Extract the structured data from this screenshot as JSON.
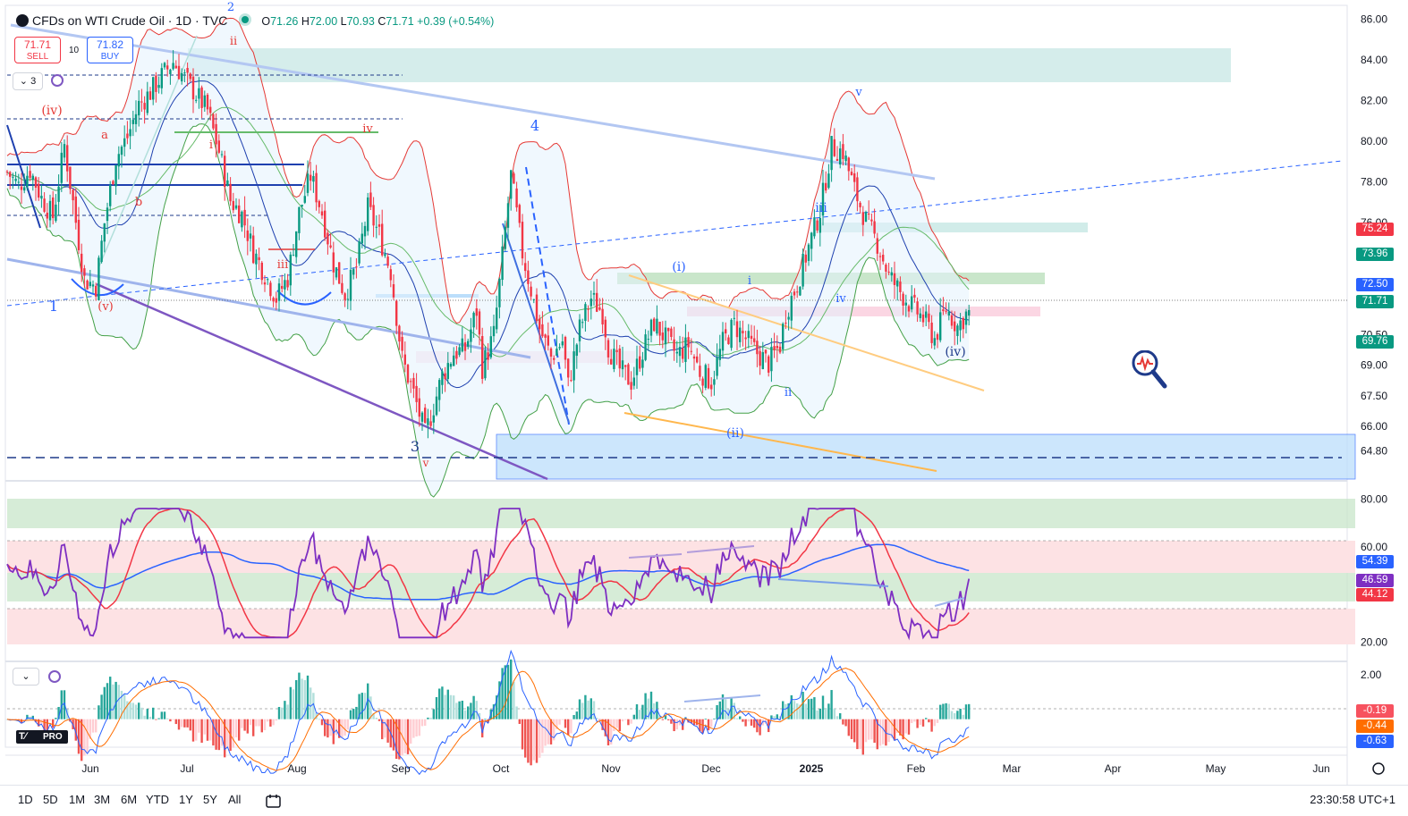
{
  "header": {
    "title": "CFDs on WTI Crude Oil · 1D · TVC",
    "ohlc": {
      "open_label": "O",
      "open": "71.26",
      "high_label": "H",
      "high": "72.00",
      "low_label": "L",
      "low": "70.93",
      "close_label": "C",
      "close": "71.71",
      "change": "+0.39 (+0.54%)"
    }
  },
  "trade": {
    "sell_price": "71.71",
    "sell_label": "SELL",
    "quantity": "10",
    "buy_price": "71.82",
    "buy_label": "BUY"
  },
  "indicators_toggle": {
    "count": "3"
  },
  "price_axis_labels": [
    {
      "text": "75.24",
      "color": "#f23645",
      "value": 75.24
    },
    {
      "text": "73.96",
      "color": "#089981",
      "value": 73.96
    },
    {
      "text": "72.50",
      "color": "#2962ff",
      "value": 72.5
    },
    {
      "text": "71.71",
      "color": "#089981",
      "value": 71.71
    },
    {
      "text": "69.76",
      "color": "#089981",
      "value": 69.76
    }
  ],
  "rsi_axis_labels": [
    {
      "text": "54.39",
      "color": "#2962ff",
      "value": 54.39
    },
    {
      "text": "46.59",
      "color": "#7e2fc2",
      "value": 46.59
    },
    {
      "text": "44.12",
      "color": "#f23645",
      "value": 44.12
    }
  ],
  "macd_axis_labels": [
    {
      "text": "-0.19",
      "color": "#f7525f",
      "value": -0.19
    },
    {
      "text": "-0.44",
      "color": "#ff6d00",
      "value": -0.44
    },
    {
      "text": "-0.63",
      "color": "#2962ff",
      "value": -0.63
    }
  ],
  "timeframes": [
    "1D",
    "5D",
    "1M",
    "3M",
    "6M",
    "YTD",
    "1Y",
    "5Y",
    "All"
  ],
  "clock": "23:30:58 UTC+1",
  "brand": "PRO",
  "chart_data": [
    {
      "type": "candlestick",
      "ylim": [
        63.5,
        86.5
      ],
      "yticks": [
        "86.00",
        "84.00",
        "82.00",
        "80.00",
        "78.00",
        "76.00",
        "73.96",
        "72.50",
        "71.71",
        "70.50",
        "69.00",
        "67.50",
        "66.00",
        "64.80"
      ],
      "ytick_values": [
        86,
        84,
        82,
        80,
        78,
        76,
        74.5,
        73.0,
        71.9,
        70.5,
        69,
        67.5,
        66,
        64.8
      ],
      "x_labels": [
        "Jun",
        "Jul",
        "Aug",
        "Sep",
        "Oct",
        "Nov",
        "Dec",
        "2025",
        "Feb",
        "Mar",
        "Apr",
        "May",
        "Jun"
      ],
      "last_price": 71.71,
      "close_path": [
        [
          0,
          78.5
        ],
        [
          4,
          77.8
        ],
        [
          8,
          78.6
        ],
        [
          12,
          77.2
        ],
        [
          16,
          76.3
        ],
        [
          20,
          79.8
        ],
        [
          23,
          77.0
        ],
        [
          27,
          73.2
        ],
        [
          31,
          72.9
        ],
        [
          34,
          76.0
        ],
        [
          38,
          79.2
        ],
        [
          42,
          80.2
        ],
        [
          46,
          81.8
        ],
        [
          50,
          82.4
        ],
        [
          54,
          83.2
        ],
        [
          58,
          83.9
        ],
        [
          62,
          83.1
        ],
        [
          66,
          82.3
        ],
        [
          70,
          81.5
        ],
        [
          74,
          79.5
        ],
        [
          78,
          77.1
        ],
        [
          82,
          76.4
        ],
        [
          86,
          74.6
        ],
        [
          90,
          73.5
        ],
        [
          94,
          72.3
        ],
        [
          98,
          73.3
        ],
        [
          102,
          76.5
        ],
        [
          106,
          78.3
        ],
        [
          110,
          76.5
        ],
        [
          114,
          74.0
        ],
        [
          118,
          72.5
        ],
        [
          122,
          73.8
        ],
        [
          126,
          76.7
        ],
        [
          130,
          75.4
        ],
        [
          134,
          73.6
        ],
        [
          138,
          69.3
        ],
        [
          142,
          67.6
        ],
        [
          146,
          65.6
        ],
        [
          148,
          66.5
        ],
        [
          152,
          68.5
        ],
        [
          156,
          69.6
        ],
        [
          160,
          69.8
        ],
        [
          164,
          71.7
        ],
        [
          166,
          68.9
        ],
        [
          170,
          70.5
        ],
        [
          172,
          73.0
        ],
        [
          176,
          78.3
        ],
        [
          180,
          74.5
        ],
        [
          184,
          72.1
        ],
        [
          186,
          70.8
        ],
        [
          190,
          69.4
        ],
        [
          194,
          70.2
        ],
        [
          196,
          68.0
        ],
        [
          200,
          70.8
        ],
        [
          204,
          72.3
        ],
        [
          208,
          71.6
        ],
        [
          210,
          69.9
        ],
        [
          214,
          68.8
        ],
        [
          218,
          68.2
        ],
        [
          222,
          69.7
        ],
        [
          226,
          71.1
        ],
        [
          230,
          70.3
        ],
        [
          234,
          69.5
        ],
        [
          238,
          70.0
        ],
        [
          242,
          68.7
        ],
        [
          246,
          68.2
        ],
        [
          250,
          70.1
        ],
        [
          254,
          71.0
        ],
        [
          258,
          70.3
        ],
        [
          262,
          69.6
        ],
        [
          266,
          69.1
        ],
        [
          270,
          70.0
        ],
        [
          272,
          71.6
        ],
        [
          276,
          73.0
        ],
        [
          280,
          74.8
        ],
        [
          284,
          76.6
        ],
        [
          288,
          79.7
        ],
        [
          292,
          79.5
        ],
        [
          296,
          77.6
        ],
        [
          300,
          76.1
        ],
        [
          304,
          75.0
        ],
        [
          308,
          73.4
        ],
        [
          312,
          72.6
        ],
        [
          316,
          71.9
        ],
        [
          320,
          71.3
        ],
        [
          324,
          70.3
        ],
        [
          328,
          71.8
        ],
        [
          332,
          70.9
        ],
        [
          336,
          71.71
        ]
      ],
      "wave_labels": [
        "2",
        "ii",
        "(iv)",
        "a",
        "b",
        "i",
        "iii",
        "iv",
        "(v)",
        "1",
        "3",
        "v",
        "4",
        "(i)",
        "(ii)",
        "i",
        "ii",
        "iii",
        "iv",
        "v",
        "(iv)"
      ]
    },
    {
      "type": "line",
      "name_hidden": true,
      "ylim": [
        15,
        85
      ],
      "yticks": [
        "80.00",
        "60.00",
        "20.00"
      ],
      "ytick_values": [
        80,
        60,
        20
      ],
      "upper_band": 60,
      "lower_band": 35
    },
    {
      "type": "bar",
      "ylim": [
        -1.5,
        2.4
      ],
      "yticks": [
        "2.00"
      ],
      "ytick_values": [
        2.0
      ]
    }
  ]
}
